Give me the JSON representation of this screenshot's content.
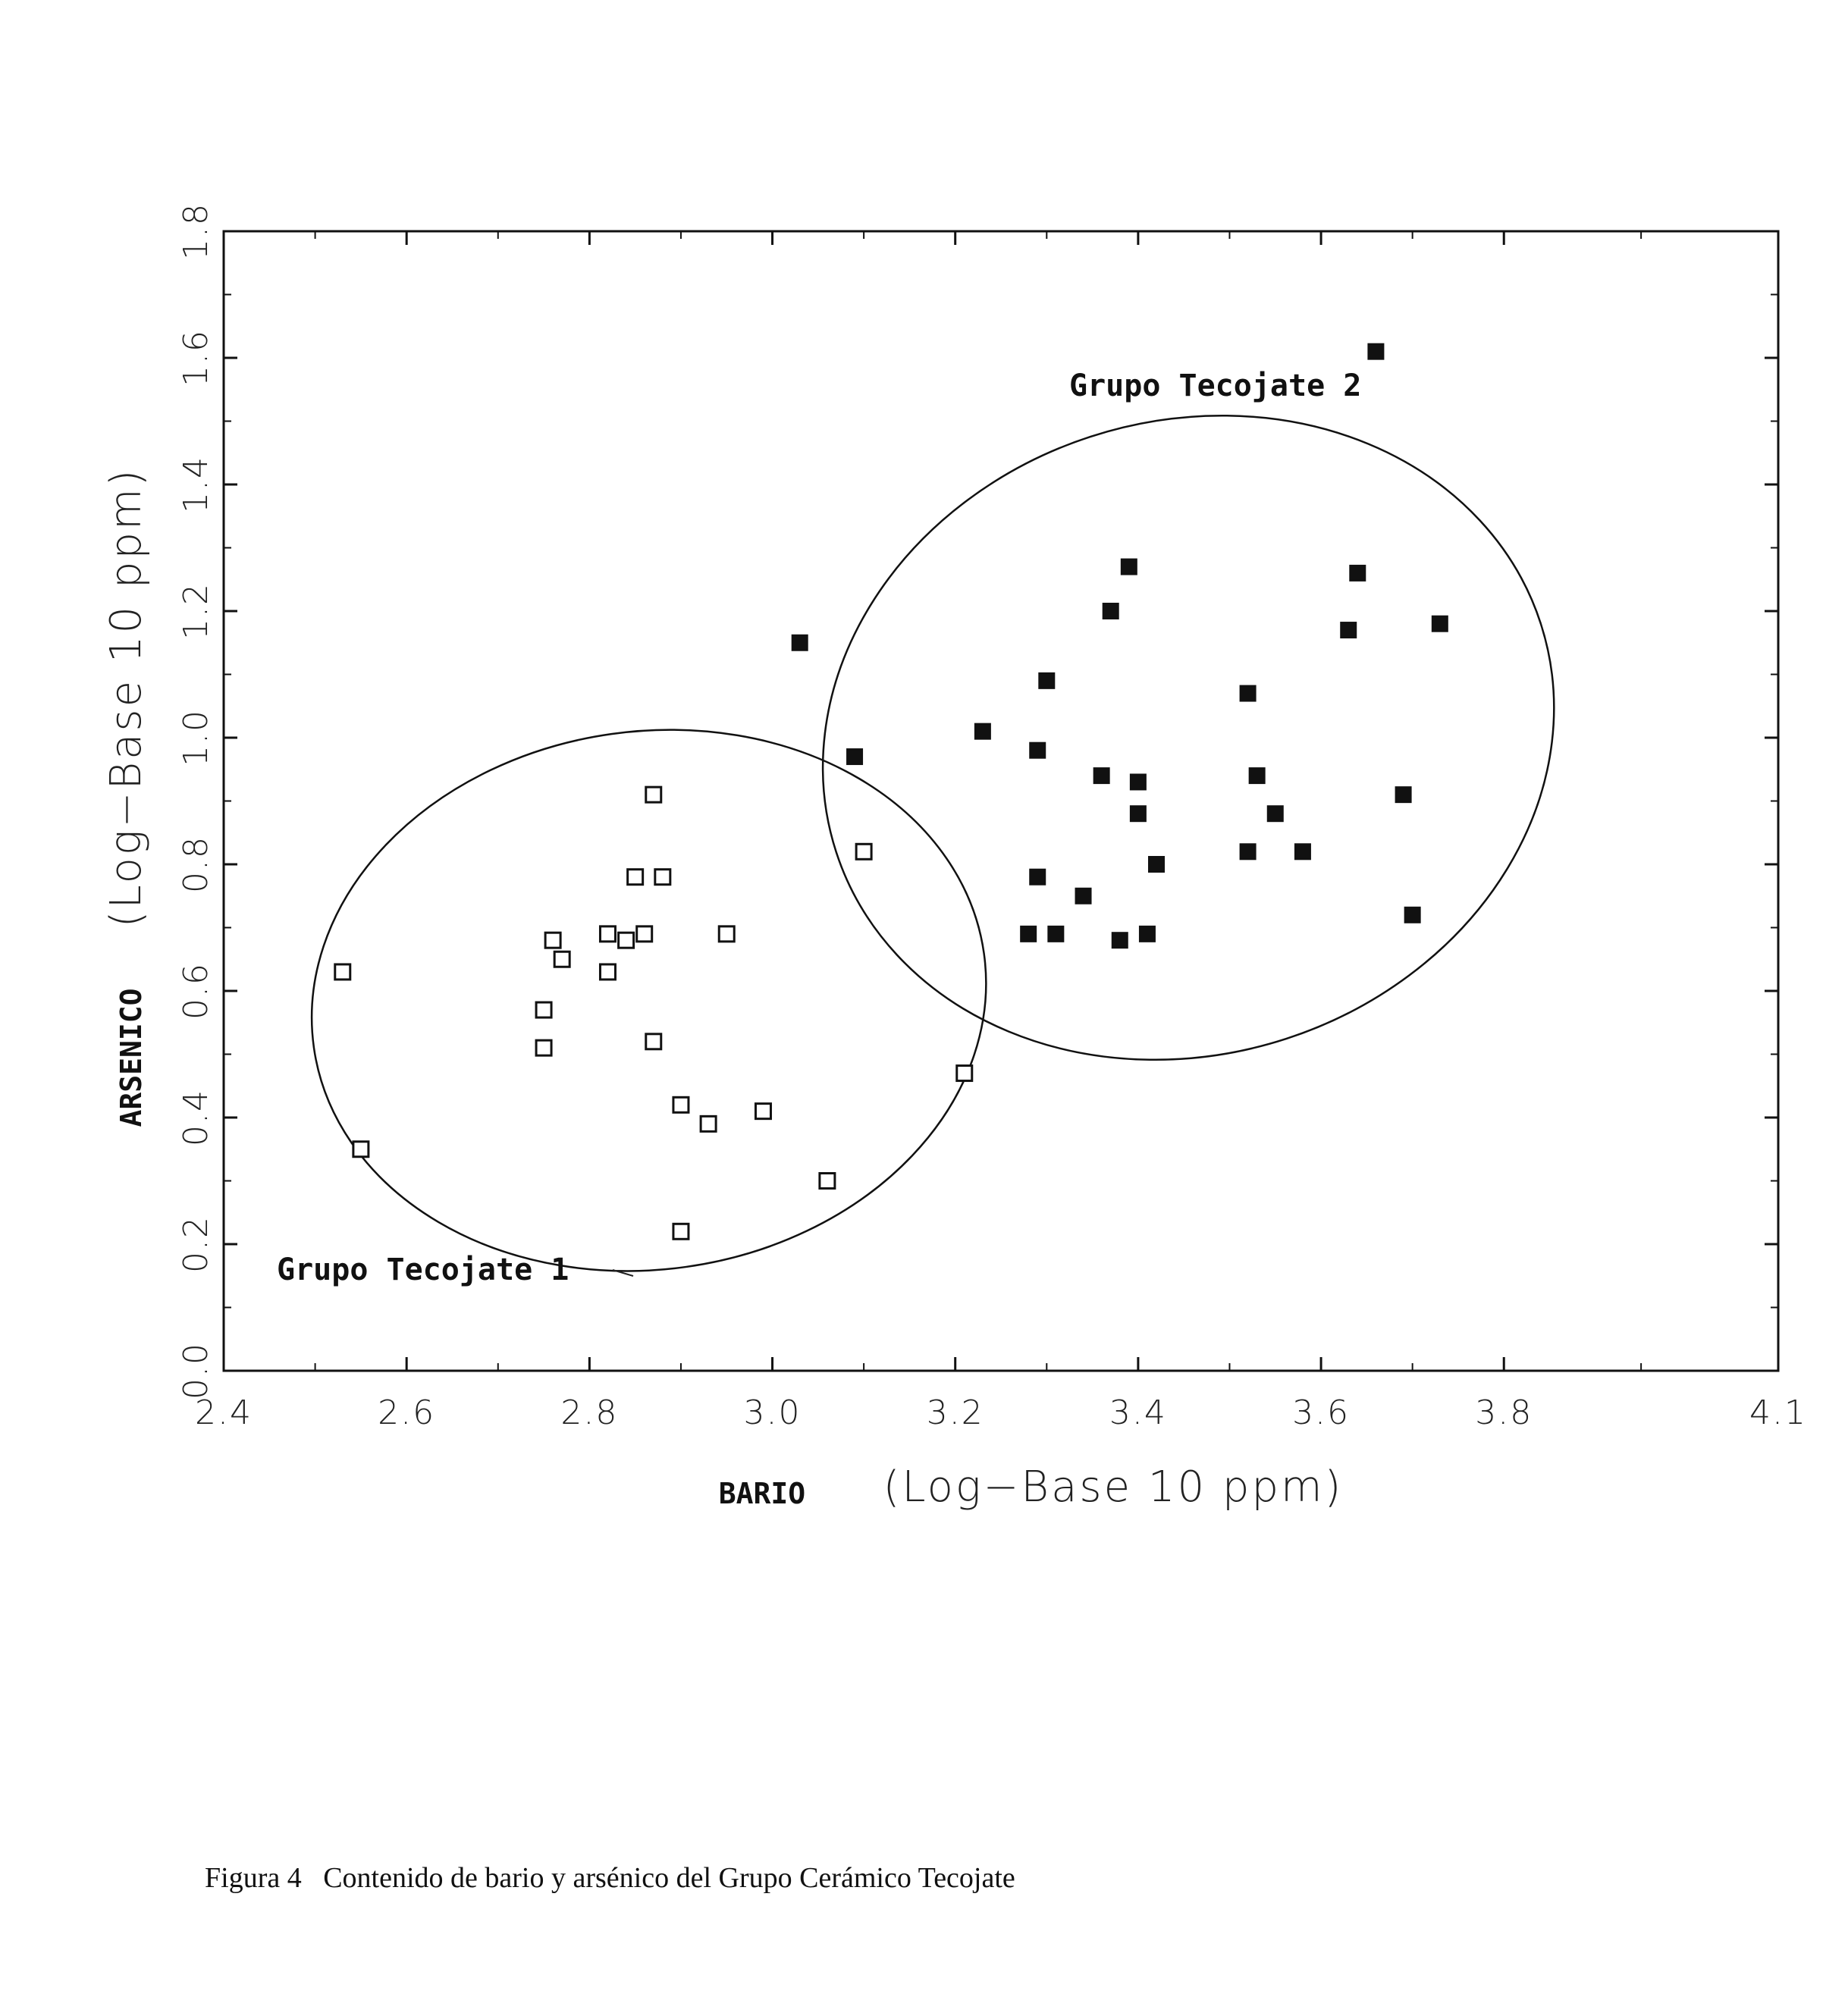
{
  "chart_data": {
    "type": "scatter",
    "xlabel": "BARIO",
    "xlabel_unit": "(Log−Base 10 ppm)",
    "ylabel": "ARSENICO",
    "ylabel_unit": "(Log−Base 10 ppm)",
    "xlim": [
      2.4,
      4.1
    ],
    "ylim": [
      0.0,
      1.8
    ],
    "x_ticks": [
      "2.4",
      "2.6",
      "2.8",
      "3.0",
      "3.2",
      "3.4",
      "3.6",
      "3.8",
      "4.1"
    ],
    "y_ticks": [
      "0.0",
      "0.2",
      "0.4",
      "0.6",
      "0.8",
      "1.0",
      "1.2",
      "1.4",
      "1.6",
      "1.8"
    ],
    "grid": false,
    "series": [
      {
        "name": "Grupo Tecojate 1",
        "marker": "open-square",
        "points": [
          [
            2.53,
            0.63
          ],
          [
            2.55,
            0.35
          ],
          [
            2.75,
            0.57
          ],
          [
            2.75,
            0.51
          ],
          [
            2.76,
            0.68
          ],
          [
            2.77,
            0.65
          ],
          [
            2.82,
            0.69
          ],
          [
            2.82,
            0.63
          ],
          [
            2.84,
            0.68
          ],
          [
            2.85,
            0.78
          ],
          [
            2.86,
            0.69
          ],
          [
            2.87,
            0.91
          ],
          [
            2.87,
            0.52
          ],
          [
            2.88,
            0.78
          ],
          [
            2.9,
            0.42
          ],
          [
            2.9,
            0.22
          ],
          [
            2.93,
            0.39
          ],
          [
            2.95,
            0.69
          ],
          [
            2.99,
            0.41
          ],
          [
            3.06,
            0.3
          ],
          [
            3.1,
            0.82
          ],
          [
            3.21,
            0.47
          ]
        ],
        "ellipse": {
          "center": [
            2.865,
            0.585
          ],
          "x_radius": 0.37,
          "y_radius": 0.425,
          "angle_deg": -8
        }
      },
      {
        "name": "Grupo Tecojate 2",
        "marker": "filled-square",
        "points": [
          [
            3.03,
            1.15
          ],
          [
            3.09,
            0.97
          ],
          [
            3.23,
            1.01
          ],
          [
            3.28,
            0.69
          ],
          [
            3.29,
            0.98
          ],
          [
            3.29,
            0.78
          ],
          [
            3.3,
            1.09
          ],
          [
            3.31,
            0.69
          ],
          [
            3.34,
            0.75
          ],
          [
            3.36,
            0.94
          ],
          [
            3.37,
            1.2
          ],
          [
            3.38,
            0.68
          ],
          [
            3.39,
            1.27
          ],
          [
            3.4,
            0.93
          ],
          [
            3.4,
            0.88
          ],
          [
            3.41,
            0.69
          ],
          [
            3.42,
            0.8
          ],
          [
            3.52,
            1.07
          ],
          [
            3.52,
            0.82
          ],
          [
            3.53,
            0.94
          ],
          [
            3.55,
            0.88
          ],
          [
            3.58,
            0.82
          ],
          [
            3.63,
            1.17
          ],
          [
            3.64,
            1.26
          ],
          [
            3.66,
            1.61
          ],
          [
            3.69,
            0.91
          ],
          [
            3.7,
            0.72
          ],
          [
            3.73,
            1.18
          ]
        ],
        "ellipse": {
          "center": [
            3.455,
            1.0
          ],
          "x_radius": 0.405,
          "y_radius": 0.5,
          "angle_deg": -18
        }
      }
    ],
    "annotations": [
      "Grupo Tecojate 1",
      "Grupo Tecojate 2"
    ]
  },
  "caption": "Figura 4   Contenido de bario y arsénico del Grupo Cerámico Tecojate"
}
